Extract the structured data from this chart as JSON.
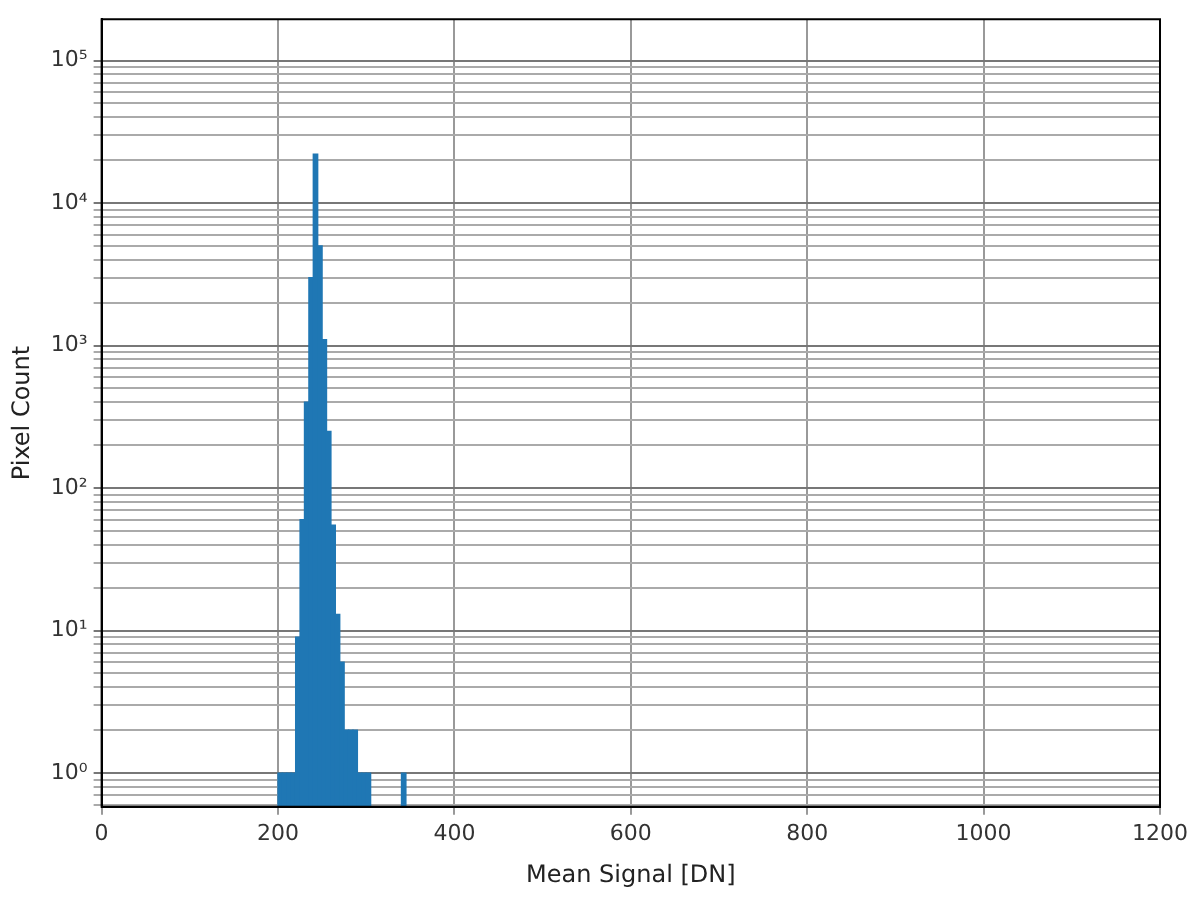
{
  "chart_data": {
    "type": "histogram",
    "xlabel": "Mean Signal [DN]",
    "ylabel": "Pixel Count",
    "bins": [
      200,
      205,
      210,
      215,
      220,
      225,
      230,
      235,
      240,
      245,
      250,
      255,
      260,
      265,
      270,
      275,
      280,
      285,
      290,
      295,
      300,
      305,
      310,
      315,
      320,
      325,
      330,
      335,
      340,
      345
    ],
    "values": [
      1,
      1,
      1,
      1,
      9,
      60,
      400,
      3000,
      22000,
      5000,
      1100,
      250,
      55,
      13,
      6,
      2,
      2,
      2,
      1,
      1,
      1,
      null,
      null,
      null,
      null,
      null,
      null,
      null,
      1
    ],
    "color": "#1f77b4",
    "log": "y",
    "grid": true,
    "xlim": [
      0,
      1200
    ],
    "xticks": [
      0,
      200,
      400,
      600,
      800,
      1000,
      1200
    ],
    "ylim": [
      0.58,
      195000
    ],
    "yticks": [
      {
        "value": 0.6,
        "label": null
      },
      {
        "value": 0.7,
        "label": null
      },
      {
        "value": 0.8,
        "label": null
      },
      {
        "value": 0.9,
        "label": null
      },
      {
        "value": 1,
        "label": "10⁰"
      },
      {
        "value": 2,
        "label": null
      },
      {
        "value": 3,
        "label": null
      },
      {
        "value": 4,
        "label": null
      },
      {
        "value": 5,
        "label": null
      },
      {
        "value": 6,
        "label": null
      },
      {
        "value": 7,
        "label": null
      },
      {
        "value": 8,
        "label": null
      },
      {
        "value": 9,
        "label": null
      },
      {
        "value": 10,
        "label": "10¹"
      },
      {
        "value": 20,
        "label": null
      },
      {
        "value": 30,
        "label": null
      },
      {
        "value": 40,
        "label": null
      },
      {
        "value": 50,
        "label": null
      },
      {
        "value": 60,
        "label": null
      },
      {
        "value": 70,
        "label": null
      },
      {
        "value": 80,
        "label": null
      },
      {
        "value": 90,
        "label": null
      },
      {
        "value": 100,
        "label": "10²"
      },
      {
        "value": 200,
        "label": null
      },
      {
        "value": 300,
        "label": null
      },
      {
        "value": 400,
        "label": null
      },
      {
        "value": 500,
        "label": null
      },
      {
        "value": 600,
        "label": null
      },
      {
        "value": 700,
        "label": null
      },
      {
        "value": 800,
        "label": null
      },
      {
        "value": 900,
        "label": null
      },
      {
        "value": 1000,
        "label": "10³"
      },
      {
        "value": 2000,
        "label": null
      },
      {
        "value": 3000,
        "label": null
      },
      {
        "value": 4000,
        "label": null
      },
      {
        "value": 5000,
        "label": null
      },
      {
        "value": 6000,
        "label": null
      },
      {
        "value": 7000,
        "label": null
      },
      {
        "value": 8000,
        "label": null
      },
      {
        "value": 9000,
        "label": null
      },
      {
        "value": 10000,
        "label": "10⁴"
      },
      {
        "value": 20000,
        "label": null
      },
      {
        "value": 30000,
        "label": null
      },
      {
        "value": 40000,
        "label": null
      },
      {
        "value": 50000,
        "label": null
      },
      {
        "value": 60000,
        "label": null
      },
      {
        "value": 70000,
        "label": null
      },
      {
        "value": 80000,
        "label": null
      },
      {
        "value": 90000,
        "label": null
      },
      {
        "value": 100000,
        "label": "10⁵"
      }
    ]
  }
}
